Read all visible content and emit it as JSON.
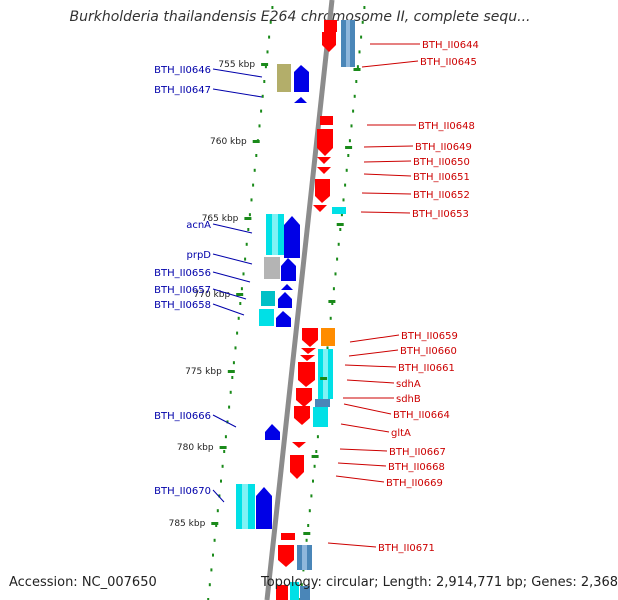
{
  "title": "Burkholderia thailandensis E264 chromosome II, complete sequ...",
  "accession": "Accession: NC_007650",
  "topology": "Topology: circular; Length: 2,914,771 bp; Genes: 2,368",
  "colors": {
    "backbone": "#8c8c8c",
    "forward_gene": "#0000e6",
    "reverse_gene": "#ff0000",
    "cyan_block": "#00e0e6",
    "steel_block": "#4a86b8",
    "olive_block": "#b3ae6a",
    "orange_block": "#ff8c00",
    "grey_block": "#b4b4b4",
    "tick": "#1a8a1a",
    "left_label": "#0000aa",
    "right_label": "#cc0000"
  },
  "scale_labels": [
    "755 kbp",
    "760 kbp",
    "765 kbp",
    "770 kbp",
    "775 kbp",
    "780 kbp",
    "785 kbp"
  ],
  "left_labels": [
    "BTH_II0646",
    "BTH_II0647",
    "acnA",
    "prpD",
    "BTH_II0656",
    "BTH_II0657",
    "BTH_II0658",
    "BTH_II0666",
    "BTH_II0670"
  ],
  "right_labels": [
    "BTH_II0644",
    "BTH_II0645",
    "BTH_II0648",
    "BTH_II0649",
    "BTH_II0650",
    "BTH_II0651",
    "BTH_II0652",
    "BTH_II0653",
    "BTH_II0659",
    "BTH_II0660",
    "BTH_II0661",
    "sdhA",
    "sdhB",
    "BTH_II0664",
    "gltA",
    "BTH_II0667",
    "BTH_II0668",
    "BTH_II0669",
    "BTH_II0671"
  ]
}
